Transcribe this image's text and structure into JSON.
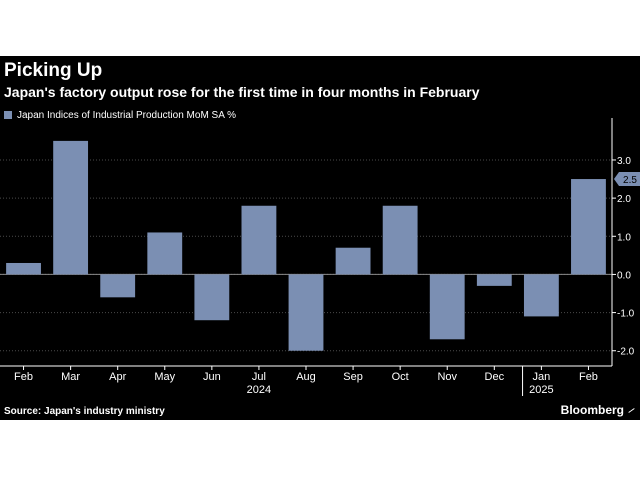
{
  "title": "Picking Up",
  "subtitle": "Japan's factory output rose for the first time in four months in February",
  "source": "Source: Japan's industry ministry",
  "brand": "Bloomberg",
  "colors": {
    "background": "#000000",
    "bar": "#7b8fb3",
    "grid": "#4a4a4a",
    "text": "#ffffff"
  },
  "chart_data": {
    "type": "bar",
    "series": [
      {
        "name": "Japan Indices of Industrial Production MoM SA %",
        "values": [
          0.3,
          3.5,
          -0.6,
          1.1,
          -1.2,
          1.8,
          -2.0,
          0.7,
          1.8,
          -1.7,
          -0.3,
          -1.1,
          2.5
        ]
      }
    ],
    "categories": [
      "Feb",
      "Mar",
      "Apr",
      "May",
      "Jun",
      "Jul",
      "Aug",
      "Sep",
      "Oct",
      "Nov",
      "Dec",
      "Jan",
      "Feb"
    ],
    "year_labels": [
      {
        "label": "2024",
        "under": "Jul"
      },
      {
        "label": "2025",
        "under": "Jan"
      }
    ],
    "y_ticks": [
      3.0,
      2.0,
      1.0,
      0.0,
      -1.0,
      -2.0
    ],
    "y_tick_labels": [
      "3.0",
      "2.0",
      "1.0",
      "0.0",
      "-1.0",
      "-2.0"
    ],
    "ylim": [
      -2.4,
      4.1
    ],
    "y_axis_side": "right",
    "grid": "horizontal dotted",
    "legend": "top-left",
    "last_value_label": "2.5"
  }
}
